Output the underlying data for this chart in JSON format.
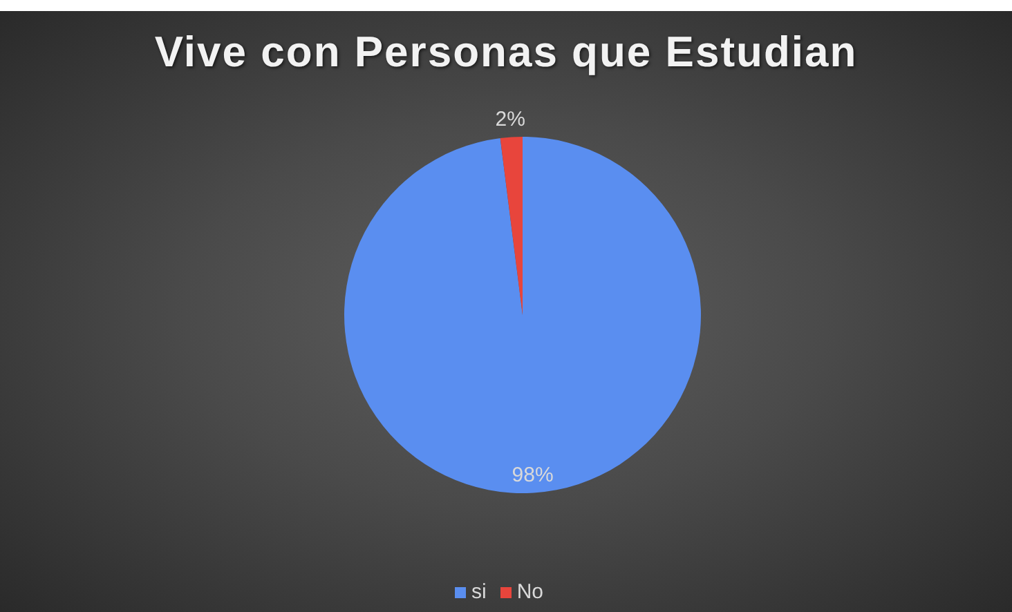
{
  "chart_data": {
    "type": "pie",
    "title": "Vive con Personas que Estudian",
    "categories": [
      "si",
      "No"
    ],
    "values": [
      98,
      2
    ],
    "colors": [
      "#5a8ef0",
      "#e8453c"
    ],
    "value_labels": [
      "98%",
      "2%"
    ],
    "legend": "bottom"
  }
}
